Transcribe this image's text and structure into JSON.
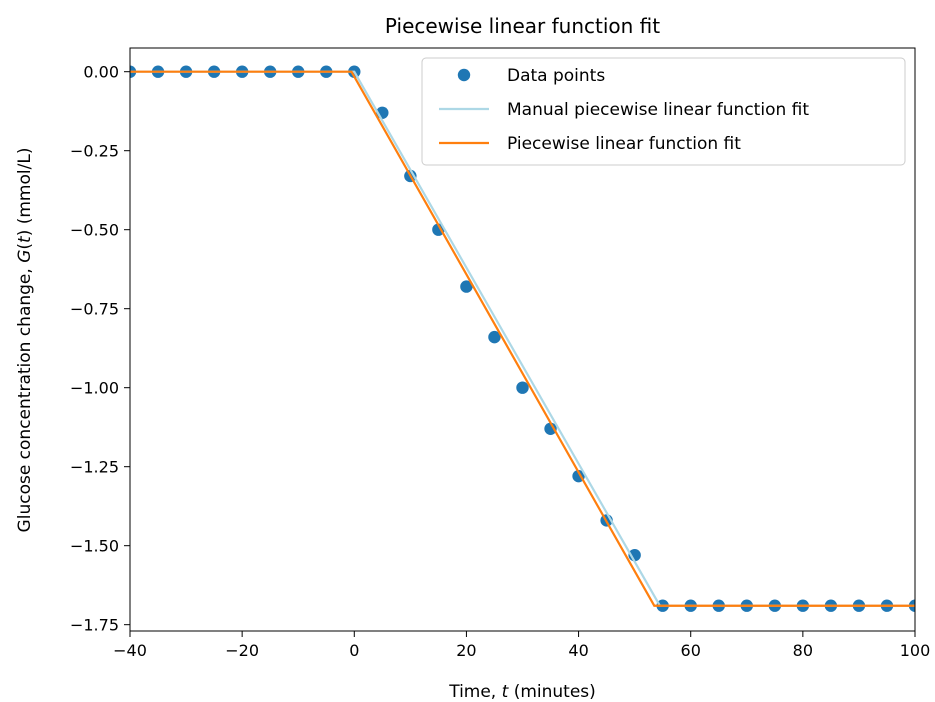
{
  "chart_data": {
    "type": "line",
    "title": "Piecewise linear function fit",
    "xlabel": "Time, t (minutes)",
    "xlabel_parts": [
      "Time, ",
      "t",
      " (minutes)"
    ],
    "ylabel": "Glucose concentration change, G(t) (mmol/L)",
    "ylabel_parts": [
      "Glucose concentration change, ",
      "G",
      "(",
      "t",
      ") (mmol/L)"
    ],
    "xlim": [
      -40,
      100
    ],
    "ylim": [
      -1.77,
      0.075
    ],
    "x_ticks": [
      -40,
      -20,
      0,
      20,
      40,
      60,
      80,
      100
    ],
    "x_tick_labels": [
      "−40",
      "−20",
      "0",
      "20",
      "40",
      "60",
      "80",
      "100"
    ],
    "y_ticks": [
      0.0,
      -0.25,
      -0.5,
      -0.75,
      -1.0,
      -1.25,
      -1.5,
      -1.75
    ],
    "y_tick_labels": [
      "0.00",
      "−0.25",
      "−0.50",
      "−0.75",
      "−1.00",
      "−1.25",
      "−1.50",
      "−1.75"
    ],
    "grid": false,
    "legend_position": "top-right",
    "series": [
      {
        "name": "Data points",
        "kind": "scatter",
        "color": "#1f77b4",
        "x": [
          -40,
          -35,
          -30,
          -25,
          -20,
          -15,
          -10,
          -5,
          0,
          5,
          10,
          15,
          20,
          25,
          30,
          35,
          40,
          45,
          50,
          55,
          60,
          65,
          70,
          75,
          80,
          85,
          90,
          95,
          100
        ],
        "y": [
          0,
          0,
          0,
          0,
          0,
          0,
          0,
          0,
          0,
          -0.13,
          -0.33,
          -0.5,
          -0.68,
          -0.84,
          -1.0,
          -1.13,
          -1.28,
          -1.42,
          -1.53,
          -1.69,
          -1.69,
          -1.69,
          -1.69,
          -1.69,
          -1.69,
          -1.69,
          -1.69,
          -1.69,
          -1.69
        ]
      },
      {
        "name": "Manual piecewise linear function fit",
        "kind": "line",
        "color": "#add8e6",
        "x": [
          -40,
          0,
          54.5,
          100
        ],
        "y": [
          0,
          0,
          -1.69,
          -1.69
        ]
      },
      {
        "name": "Piecewise linear function fit",
        "kind": "line",
        "color": "#ff7f0e",
        "x": [
          -40,
          -0.5,
          53.5,
          100
        ],
        "y": [
          0,
          0,
          -1.69,
          -1.69
        ]
      }
    ]
  }
}
